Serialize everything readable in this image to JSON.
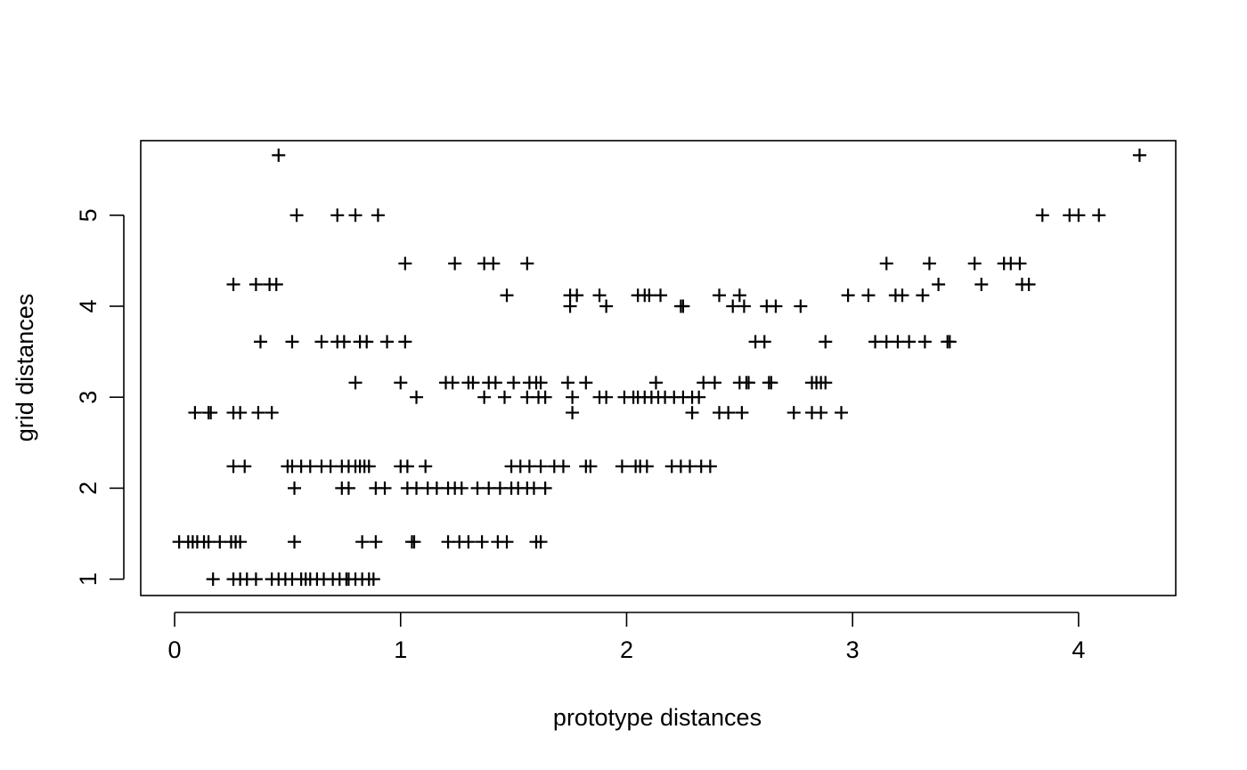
{
  "chart_data": {
    "type": "scatter",
    "title": "",
    "xlabel": "prototype distances",
    "ylabel": "grid distances",
    "xlim": [
      -0.15,
      4.43
    ],
    "ylim": [
      0.82,
      5.82
    ],
    "x_ticks": [
      0,
      1,
      2,
      3,
      4
    ],
    "y_ticks": [
      1,
      2,
      3,
      4,
      5
    ],
    "marker": "plus",
    "grid": false,
    "series": [
      {
        "name": "",
        "points": [
          [
            0.46,
            5.66
          ],
          [
            4.27,
            5.66
          ],
          [
            0.54,
            5.0
          ],
          [
            0.72,
            5.0
          ],
          [
            0.8,
            5.0
          ],
          [
            0.9,
            5.0
          ],
          [
            3.84,
            5.0
          ],
          [
            3.96,
            5.0
          ],
          [
            4.0,
            5.0
          ],
          [
            4.09,
            5.0
          ],
          [
            1.02,
            4.47
          ],
          [
            1.24,
            4.47
          ],
          [
            1.37,
            4.47
          ],
          [
            1.41,
            4.47
          ],
          [
            1.56,
            4.47
          ],
          [
            3.15,
            4.47
          ],
          [
            3.34,
            4.47
          ],
          [
            3.54,
            4.47
          ],
          [
            3.67,
            4.47
          ],
          [
            3.7,
            4.47
          ],
          [
            3.74,
            4.47
          ],
          [
            0.26,
            4.24
          ],
          [
            0.36,
            4.24
          ],
          [
            0.42,
            4.24
          ],
          [
            0.45,
            4.24
          ],
          [
            3.38,
            4.24
          ],
          [
            3.57,
            4.24
          ],
          [
            3.75,
            4.24
          ],
          [
            3.78,
            4.24
          ],
          [
            1.47,
            4.12
          ],
          [
            1.75,
            4.12
          ],
          [
            1.78,
            4.12
          ],
          [
            1.88,
            4.12
          ],
          [
            2.05,
            4.12
          ],
          [
            2.08,
            4.12
          ],
          [
            2.1,
            4.12
          ],
          [
            2.15,
            4.12
          ],
          [
            2.41,
            4.12
          ],
          [
            2.5,
            4.12
          ],
          [
            2.98,
            4.12
          ],
          [
            3.07,
            4.12
          ],
          [
            3.19,
            4.12
          ],
          [
            3.22,
            4.12
          ],
          [
            3.31,
            4.12
          ],
          [
            1.75,
            4.0
          ],
          [
            1.91,
            4.0
          ],
          [
            2.24,
            4.0
          ],
          [
            2.25,
            4.0
          ],
          [
            2.47,
            4.0
          ],
          [
            2.52,
            4.0
          ],
          [
            2.62,
            4.0
          ],
          [
            2.66,
            4.0
          ],
          [
            2.77,
            4.0
          ],
          [
            0.38,
            3.61
          ],
          [
            0.52,
            3.61
          ],
          [
            0.65,
            3.61
          ],
          [
            0.72,
            3.61
          ],
          [
            0.75,
            3.61
          ],
          [
            0.82,
            3.61
          ],
          [
            0.85,
            3.61
          ],
          [
            0.94,
            3.61
          ],
          [
            1.02,
            3.61
          ],
          [
            2.57,
            3.61
          ],
          [
            2.61,
            3.61
          ],
          [
            2.88,
            3.61
          ],
          [
            3.1,
            3.61
          ],
          [
            3.15,
            3.61
          ],
          [
            3.2,
            3.61
          ],
          [
            3.25,
            3.61
          ],
          [
            3.32,
            3.61
          ],
          [
            3.42,
            3.61
          ],
          [
            3.43,
            3.61
          ],
          [
            0.8,
            3.16
          ],
          [
            1.0,
            3.16
          ],
          [
            1.2,
            3.16
          ],
          [
            1.23,
            3.16
          ],
          [
            1.3,
            3.16
          ],
          [
            1.32,
            3.16
          ],
          [
            1.39,
            3.16
          ],
          [
            1.42,
            3.16
          ],
          [
            1.5,
            3.16
          ],
          [
            1.57,
            3.16
          ],
          [
            1.6,
            3.16
          ],
          [
            1.62,
            3.16
          ],
          [
            1.74,
            3.16
          ],
          [
            1.82,
            3.16
          ],
          [
            2.13,
            3.16
          ],
          [
            2.34,
            3.16
          ],
          [
            2.39,
            3.16
          ],
          [
            2.5,
            3.16
          ],
          [
            2.53,
            3.16
          ],
          [
            2.54,
            3.16
          ],
          [
            2.63,
            3.16
          ],
          [
            2.64,
            3.16
          ],
          [
            2.82,
            3.16
          ],
          [
            2.84,
            3.16
          ],
          [
            2.86,
            3.16
          ],
          [
            2.88,
            3.16
          ],
          [
            1.07,
            3.0
          ],
          [
            1.37,
            3.0
          ],
          [
            1.46,
            3.0
          ],
          [
            1.56,
            3.0
          ],
          [
            1.61,
            3.0
          ],
          [
            1.64,
            3.0
          ],
          [
            1.76,
            3.0
          ],
          [
            1.88,
            3.0
          ],
          [
            1.91,
            3.0
          ],
          [
            1.99,
            3.0
          ],
          [
            2.03,
            3.0
          ],
          [
            2.05,
            3.0
          ],
          [
            2.08,
            3.0
          ],
          [
            2.11,
            3.0
          ],
          [
            2.14,
            3.0
          ],
          [
            2.17,
            3.0
          ],
          [
            2.21,
            3.0
          ],
          [
            2.25,
            3.0
          ],
          [
            2.29,
            3.0
          ],
          [
            2.32,
            3.0
          ],
          [
            0.09,
            2.83
          ],
          [
            0.15,
            2.83
          ],
          [
            0.16,
            2.83
          ],
          [
            0.26,
            2.83
          ],
          [
            0.29,
            2.83
          ],
          [
            0.37,
            2.83
          ],
          [
            0.43,
            2.83
          ],
          [
            1.76,
            2.83
          ],
          [
            2.29,
            2.83
          ],
          [
            2.41,
            2.83
          ],
          [
            2.45,
            2.83
          ],
          [
            2.51,
            2.83
          ],
          [
            2.74,
            2.83
          ],
          [
            2.82,
            2.83
          ],
          [
            2.86,
            2.83
          ],
          [
            2.95,
            2.83
          ],
          [
            0.26,
            2.24
          ],
          [
            0.31,
            2.24
          ],
          [
            0.5,
            2.24
          ],
          [
            0.52,
            2.24
          ],
          [
            0.56,
            2.24
          ],
          [
            0.6,
            2.24
          ],
          [
            0.65,
            2.24
          ],
          [
            0.69,
            2.24
          ],
          [
            0.74,
            2.24
          ],
          [
            0.77,
            2.24
          ],
          [
            0.8,
            2.24
          ],
          [
            0.82,
            2.24
          ],
          [
            0.84,
            2.24
          ],
          [
            0.86,
            2.24
          ],
          [
            1.0,
            2.24
          ],
          [
            1.03,
            2.24
          ],
          [
            1.11,
            2.24
          ],
          [
            1.49,
            2.24
          ],
          [
            1.53,
            2.24
          ],
          [
            1.57,
            2.24
          ],
          [
            1.62,
            2.24
          ],
          [
            1.68,
            2.24
          ],
          [
            1.72,
            2.24
          ],
          [
            1.82,
            2.24
          ],
          [
            1.84,
            2.24
          ],
          [
            1.98,
            2.24
          ],
          [
            2.04,
            2.24
          ],
          [
            2.06,
            2.24
          ],
          [
            2.09,
            2.24
          ],
          [
            2.2,
            2.24
          ],
          [
            2.24,
            2.24
          ],
          [
            2.28,
            2.24
          ],
          [
            2.33,
            2.24
          ],
          [
            2.37,
            2.24
          ],
          [
            0.53,
            2.0
          ],
          [
            0.74,
            2.0
          ],
          [
            0.77,
            2.0
          ],
          [
            0.89,
            2.0
          ],
          [
            0.93,
            2.0
          ],
          [
            1.03,
            2.0
          ],
          [
            1.07,
            2.0
          ],
          [
            1.12,
            2.0
          ],
          [
            1.16,
            2.0
          ],
          [
            1.21,
            2.0
          ],
          [
            1.24,
            2.0
          ],
          [
            1.27,
            2.0
          ],
          [
            1.34,
            2.0
          ],
          [
            1.39,
            2.0
          ],
          [
            1.44,
            2.0
          ],
          [
            1.49,
            2.0
          ],
          [
            1.52,
            2.0
          ],
          [
            1.56,
            2.0
          ],
          [
            1.59,
            2.0
          ],
          [
            1.64,
            2.0
          ],
          [
            0.02,
            1.41
          ],
          [
            0.06,
            1.41
          ],
          [
            0.08,
            1.41
          ],
          [
            0.1,
            1.41
          ],
          [
            0.13,
            1.41
          ],
          [
            0.15,
            1.41
          ],
          [
            0.2,
            1.41
          ],
          [
            0.25,
            1.41
          ],
          [
            0.27,
            1.41
          ],
          [
            0.29,
            1.41
          ],
          [
            0.53,
            1.41
          ],
          [
            0.83,
            1.41
          ],
          [
            0.89,
            1.41
          ],
          [
            1.05,
            1.41
          ],
          [
            1.06,
            1.41
          ],
          [
            1.21,
            1.41
          ],
          [
            1.26,
            1.41
          ],
          [
            1.3,
            1.41
          ],
          [
            1.36,
            1.41
          ],
          [
            1.43,
            1.41
          ],
          [
            1.47,
            1.41
          ],
          [
            1.6,
            1.41
          ],
          [
            1.62,
            1.41
          ],
          [
            0.17,
            1.0
          ],
          [
            0.26,
            1.0
          ],
          [
            0.29,
            1.0
          ],
          [
            0.32,
            1.0
          ],
          [
            0.36,
            1.0
          ],
          [
            0.43,
            1.0
          ],
          [
            0.46,
            1.0
          ],
          [
            0.49,
            1.0
          ],
          [
            0.52,
            1.0
          ],
          [
            0.56,
            1.0
          ],
          [
            0.58,
            1.0
          ],
          [
            0.6,
            1.0
          ],
          [
            0.63,
            1.0
          ],
          [
            0.66,
            1.0
          ],
          [
            0.7,
            1.0
          ],
          [
            0.73,
            1.0
          ],
          [
            0.76,
            1.0
          ],
          [
            0.77,
            1.0
          ],
          [
            0.8,
            1.0
          ],
          [
            0.83,
            1.0
          ],
          [
            0.86,
            1.0
          ],
          [
            0.88,
            1.0
          ]
        ]
      }
    ]
  }
}
